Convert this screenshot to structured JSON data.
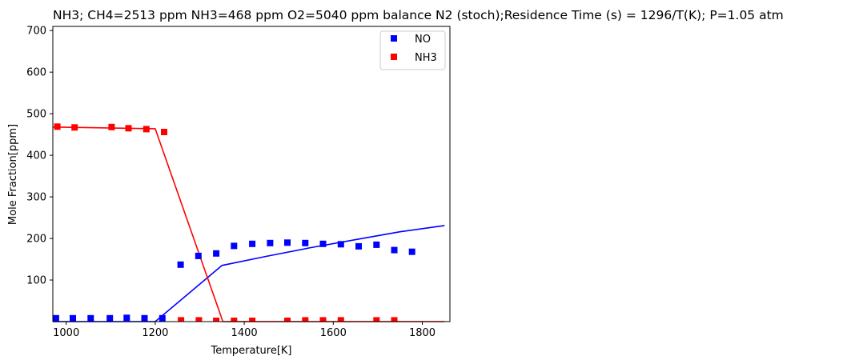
{
  "chart_data": {
    "type": "line",
    "title": "NH3; CH4=2513 ppm  NH3=468 ppm O2=5040 ppm balance N2 (stoch);Residence Time (s) = 1296/T(K); P=1.05 atm",
    "xlabel": "Temperature[K]",
    "ylabel": "Mole Fraction[ppm]",
    "xlim": [
      970,
      1862
    ],
    "ylim": [
      0,
      710
    ],
    "xticks": [
      1000,
      1200,
      1400,
      1600,
      1800
    ],
    "xtick_labels": [
      "1000",
      "1200",
      "1400",
      "1600",
      "1800"
    ],
    "yticks": [
      100,
      200,
      300,
      400,
      500,
      600,
      700
    ],
    "ytick_labels": [
      "100",
      "200",
      "300",
      "400",
      "500",
      "600",
      "700"
    ],
    "grid": false,
    "legend_position": "top-right",
    "markers": [
      {
        "name": "NO",
        "color": "#0000ff",
        "marker": "square",
        "x": [
          977,
          1015,
          1055,
          1098,
          1136,
          1176,
          1216,
          1257,
          1297,
          1337,
          1377,
          1418,
          1458,
          1497,
          1537,
          1577,
          1617,
          1657,
          1697,
          1737,
          1777
        ],
        "y": [
          8,
          8,
          8,
          8,
          9,
          8,
          8,
          137,
          158,
          164,
          182,
          187,
          189,
          190,
          189,
          187,
          186,
          181,
          185,
          172,
          168
        ]
      },
      {
        "name": "NH3",
        "color": "#ff0000",
        "marker": "square",
        "x": [
          980,
          1019,
          1102,
          1140,
          1180,
          1220,
          1258,
          1298,
          1337,
          1377,
          1418,
          1497,
          1537,
          1577,
          1617,
          1697,
          1737
        ],
        "y": [
          469,
          467,
          468,
          465,
          463,
          456,
          3,
          3,
          2,
          2,
          2,
          2,
          3,
          3,
          3,
          3,
          3
        ]
      }
    ],
    "lines": [
      {
        "color": "#0000ff",
        "x": [
          970,
          1200,
          1350,
          1450,
          1550,
          1650,
          1750,
          1850
        ],
        "y": [
          0,
          0,
          135,
          157,
          178,
          197,
          216,
          231
        ]
      },
      {
        "color": "#ff0000",
        "x": [
          970,
          1200,
          1352,
          1400,
          1500,
          1700,
          1850
        ],
        "y": [
          468,
          464,
          0,
          0,
          0,
          0,
          0
        ]
      }
    ]
  }
}
